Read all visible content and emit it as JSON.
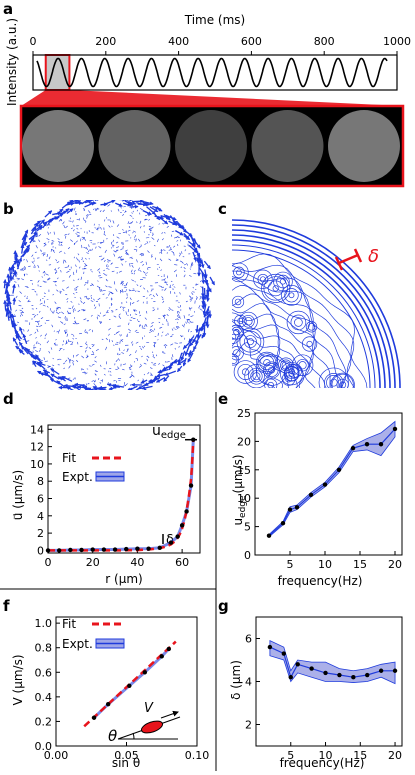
{
  "panel_labels": [
    "a",
    "b",
    "c",
    "d",
    "e",
    "f",
    "g"
  ],
  "panel_a": {
    "xlabel": "Time (ms)",
    "ylabel": "Intensity (a.u.)",
    "xticks": [
      "0",
      "200",
      "400",
      "600",
      "800",
      "1000"
    ],
    "xtick_values": [
      0,
      200,
      400,
      600,
      800,
      1000
    ],
    "xlim": [
      0,
      1000
    ],
    "cycles": 15,
    "highlight_range_ms": [
      35,
      100
    ],
    "frames_count": 5,
    "frame_brightness": [
      0.85,
      0.7,
      0.45,
      0.6,
      0.85
    ],
    "accent_color": "#e8141c"
  },
  "panel_b": {
    "type": "vector-field",
    "color": "#1f3bdc"
  },
  "panel_c": {
    "delta_label": "δ",
    "line_color": "#1f3bdc",
    "marker_color": "#e8141c"
  },
  "chart_data": [
    {
      "panel": "d",
      "type": "line",
      "xlabel": "r (μm)",
      "ylabel": "u⃗ (μm/s)",
      "xticks": [
        0,
        20,
        40,
        60
      ],
      "yticks": [
        0,
        2,
        4,
        6,
        8,
        10,
        12,
        14
      ],
      "xlim": [
        0,
        68
      ],
      "ylim": [
        -0.3,
        14.5
      ],
      "legend": [
        "Fit",
        "Expt."
      ],
      "annotations": [
        "u",
        "edge",
        "δ"
      ],
      "series": [
        {
          "name": "Expt.",
          "x": [
            0,
            5,
            10,
            15,
            20,
            25,
            30,
            35,
            40,
            45,
            50,
            55,
            58,
            60,
            62,
            64,
            65
          ],
          "y": [
            0,
            0,
            0.05,
            0.05,
            0.1,
            0.1,
            0.1,
            0.15,
            0.2,
            0.2,
            0.3,
            0.9,
            1.6,
            2.9,
            4.5,
            7.5,
            12.8
          ]
        },
        {
          "name": "Fit",
          "x": [
            0,
            10,
            20,
            30,
            40,
            45,
            50,
            53,
            55,
            57,
            58,
            59,
            60,
            61,
            62,
            63,
            64,
            64.5,
            65
          ],
          "y": [
            0,
            0,
            0,
            0,
            0.03,
            0.1,
            0.25,
            0.45,
            0.7,
            1.1,
            1.45,
            1.9,
            2.55,
            3.4,
            4.6,
            6.2,
            8.3,
            10.2,
            12.9
          ]
        }
      ]
    },
    {
      "panel": "e",
      "type": "line",
      "xlabel": "frequency(Hz)",
      "ylabel": "u",
      "ylabel_sub": "edge",
      "ylabel_unit": "(μm/s)",
      "xticks": [
        5,
        10,
        15,
        20
      ],
      "yticks": [
        0,
        5,
        10,
        15,
        20,
        25
      ],
      "xlim": [
        0,
        21
      ],
      "ylim": [
        0,
        25
      ],
      "series": [
        {
          "name": "",
          "x": [
            2,
            4,
            5,
            6,
            8,
            10,
            12,
            14,
            16,
            18,
            20
          ],
          "y": [
            3.4,
            5.6,
            8,
            8.4,
            10.6,
            12.4,
            15,
            18.8,
            19.5,
            19.5,
            22.2
          ],
          "lower": [
            3.2,
            5.3,
            7.5,
            8,
            10.2,
            12,
            14.5,
            18.2,
            18.5,
            17.5,
            20.8
          ],
          "upper": [
            3.6,
            5.9,
            8.5,
            8.8,
            11,
            12.8,
            15.5,
            19.3,
            20.5,
            21.5,
            23.5
          ]
        }
      ]
    },
    {
      "panel": "f",
      "type": "line",
      "xlabel": "sin θ",
      "ylabel": "V (μm/s)",
      "xticks": [
        "0.00",
        "0.05",
        "0.10"
      ],
      "xtick_values": [
        0,
        0.05,
        0.1
      ],
      "yticks": [
        "0.0",
        "0.2",
        "0.4",
        "0.6",
        "0.8",
        "1.0"
      ],
      "ytick_values": [
        0,
        0.2,
        0.4,
        0.6,
        0.8,
        1.0
      ],
      "xlim": [
        0,
        0.1
      ],
      "ylim": [
        0,
        1.05
      ],
      "legend": [
        "Fit",
        "Expt."
      ],
      "inset_labels": [
        "V",
        "θ"
      ],
      "series": [
        {
          "name": "Expt.",
          "x": [
            0.027,
            0.037,
            0.052,
            0.063,
            0.075,
            0.08
          ],
          "y": [
            0.23,
            0.34,
            0.49,
            0.6,
            0.73,
            0.79
          ]
        },
        {
          "name": "Fit",
          "x": [
            0.02,
            0.085
          ],
          "y": [
            0.16,
            0.85
          ]
        }
      ]
    },
    {
      "panel": "g",
      "type": "line",
      "xlabel": "frequency(Hz)",
      "ylabel": "δ (μm)",
      "xticks": [
        5,
        10,
        15,
        20
      ],
      "yticks": [
        2,
        4,
        6
      ],
      "xlim": [
        0,
        21
      ],
      "ylim": [
        1,
        7
      ],
      "series": [
        {
          "name": "",
          "x": [
            2,
            4,
            5,
            6,
            8,
            10,
            12,
            14,
            16,
            18,
            20
          ],
          "y": [
            5.6,
            5.3,
            4.2,
            4.8,
            4.6,
            4.4,
            4.3,
            4.2,
            4.3,
            4.5,
            4.5
          ],
          "lower": [
            5.2,
            5.0,
            4.0,
            4.4,
            4.2,
            4.0,
            4.0,
            3.95,
            4.0,
            4.2,
            3.9
          ],
          "upper": [
            5.9,
            5.6,
            4.5,
            5.0,
            4.9,
            4.9,
            4.6,
            4.5,
            4.6,
            4.8,
            4.9
          ]
        }
      ]
    }
  ]
}
